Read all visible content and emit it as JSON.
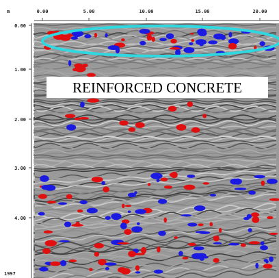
{
  "axis_top": {
    "unit": "m",
    "labels": [
      "0.00",
      "5.00",
      "10.00",
      "15.00",
      "20.00"
    ]
  },
  "axis_left": {
    "labels": [
      "0.00",
      "1.00",
      "2.00",
      "3.00",
      "4.00"
    ]
  },
  "footer": "1997",
  "annotation": "REINFORCED CONCRETE"
}
